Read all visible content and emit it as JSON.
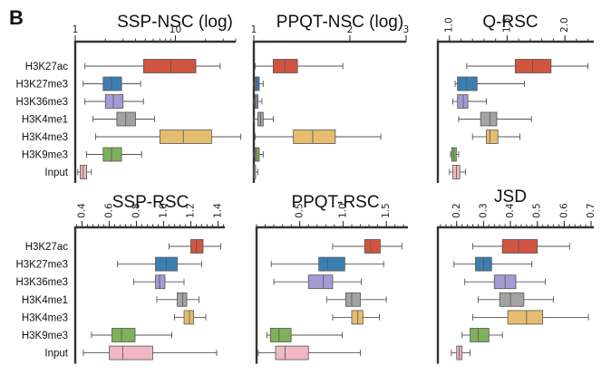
{
  "figure": {
    "panel_letter": "B"
  },
  "categories": [
    "H3K27ac",
    "H3K27me3",
    "H3K36me3",
    "H3K4me1",
    "H3K4me3",
    "H3K9me3",
    "Input"
  ],
  "colors": {
    "H3K27ac": "#d05541",
    "H3K27me3": "#3b7fb0",
    "H3K36me3": "#a59ad4",
    "H3K4me1": "#a3a3a3",
    "H3K4me3": "#e6bd6e",
    "H3K9me3": "#7fb05a",
    "Input": "#f0b8c2"
  },
  "chart_data": [
    {
      "type": "box",
      "title": "SSP-NSC (log)",
      "scale": "log",
      "xlim": [
        1,
        40
      ],
      "ticks": [
        1,
        10
      ],
      "tick_labels": [
        "1",
        "10"
      ],
      "categories": [
        "H3K27ac",
        "H3K27me3",
        "H3K36me3",
        "H3K4me1",
        "H3K4me3",
        "H3K9me3",
        "Input"
      ],
      "boxes": [
        {
          "min": 1.25,
          "q1": 4.8,
          "median": 9.0,
          "q3": 16.0,
          "max": 28.0
        },
        {
          "min": 1.2,
          "q1": 1.9,
          "median": 2.3,
          "q3": 2.9,
          "max": 4.5
        },
        {
          "min": 1.25,
          "q1": 2.0,
          "median": 2.4,
          "q3": 3.0,
          "max": 4.8
        },
        {
          "min": 1.5,
          "q1": 2.6,
          "median": 3.2,
          "q3": 4.0,
          "max": 6.2
        },
        {
          "min": 1.6,
          "q1": 7.0,
          "median": 12.0,
          "q3": 23.0,
          "max": 45.0
        },
        {
          "min": 1.3,
          "q1": 1.9,
          "median": 2.3,
          "q3": 2.9,
          "max": 4.6
        },
        {
          "min": 1.06,
          "q1": 1.12,
          "median": 1.2,
          "q3": 1.3,
          "max": 1.45
        }
      ]
    },
    {
      "type": "box",
      "title": "PPQT-NSC (log)",
      "scale": "log",
      "xlim": [
        1,
        3
      ],
      "ticks": [
        1,
        2,
        3
      ],
      "tick_labels": [
        "1",
        "2",
        "3"
      ],
      "categories": [
        "H3K27ac",
        "H3K27me3",
        "H3K36me3",
        "H3K4me1",
        "H3K4me3",
        "H3K9me3",
        "Input"
      ],
      "boxes": [
        {
          "min": 1.01,
          "q1": 1.15,
          "median": 1.25,
          "q3": 1.37,
          "max": 1.9
        },
        {
          "min": 1.0,
          "q1": 1.01,
          "median": 1.02,
          "q3": 1.04,
          "max": 1.07
        },
        {
          "min": 1.0,
          "q1": 1.01,
          "median": 1.02,
          "q3": 1.03,
          "max": 1.06
        },
        {
          "min": 1.0,
          "q1": 1.03,
          "median": 1.05,
          "q3": 1.07,
          "max": 1.15
        },
        {
          "min": 1.01,
          "q1": 1.33,
          "median": 1.53,
          "q3": 1.8,
          "max": 2.5
        },
        {
          "min": 1.0,
          "q1": 1.01,
          "median": 1.02,
          "q3": 1.04,
          "max": 1.07
        },
        {
          "min": 1.0,
          "q1": 1.0,
          "median": 1.005,
          "q3": 1.01,
          "max": 1.03
        }
      ]
    },
    {
      "type": "box",
      "title": "Q-RSC",
      "scale": "linear",
      "xlim": [
        0.9,
        2.25
      ],
      "ticks": [
        1.0,
        1.5,
        2.0
      ],
      "tick_labels": [
        "1.0",
        "1.5",
        "2.0"
      ],
      "categories": [
        "H3K27ac",
        "H3K27me3",
        "H3K36me3",
        "H3K4me1",
        "H3K4me3",
        "H3K9me3",
        "Input"
      ],
      "boxes": [
        {
          "min": 1.15,
          "q1": 1.57,
          "median": 1.72,
          "q3": 1.88,
          "max": 2.2
        },
        {
          "min": 1.05,
          "q1": 1.07,
          "median": 1.15,
          "q3": 1.24,
          "max": 1.65
        },
        {
          "min": 1.03,
          "q1": 1.07,
          "median": 1.12,
          "q3": 1.16,
          "max": 1.32
        },
        {
          "min": 1.08,
          "q1": 1.27,
          "median": 1.35,
          "q3": 1.41,
          "max": 1.71
        },
        {
          "min": 1.2,
          "q1": 1.32,
          "median": 1.35,
          "q3": 1.42,
          "max": 1.61
        },
        {
          "min": 1.01,
          "q1": 1.02,
          "median": 1.04,
          "q3": 1.06,
          "max": 1.08
        },
        {
          "min": 1.0,
          "q1": 1.03,
          "median": 1.06,
          "q3": 1.09,
          "max": 1.14
        }
      ]
    },
    {
      "type": "box",
      "title": "SSP-RSC",
      "scale": "linear",
      "xlim": [
        0.35,
        1.45
      ],
      "ticks": [
        0.4,
        0.6,
        0.8,
        1.0,
        1.2,
        1.4
      ],
      "tick_labels": [
        "0.4",
        "0.6",
        "0.8",
        "1.0",
        "1.2",
        "1.4"
      ],
      "categories": [
        "H3K27ac",
        "H3K27me3",
        "H3K36me3",
        "H3K4me1",
        "H3K4me3",
        "H3K9me3",
        "Input"
      ],
      "boxes": [
        {
          "min": 1.04,
          "q1": 1.2,
          "median": 1.24,
          "q3": 1.29,
          "max": 1.42
        },
        {
          "min": 0.66,
          "q1": 0.94,
          "median": 1.02,
          "q3": 1.1,
          "max": 1.28
        },
        {
          "min": 0.78,
          "q1": 0.94,
          "median": 0.97,
          "q3": 1.01,
          "max": 1.15
        },
        {
          "min": 0.95,
          "q1": 1.1,
          "median": 1.14,
          "q3": 1.17,
          "max": 1.26
        },
        {
          "min": 1.08,
          "q1": 1.15,
          "median": 1.19,
          "q3": 1.22,
          "max": 1.31
        },
        {
          "min": 0.47,
          "q1": 0.62,
          "median": 0.69,
          "q3": 0.79,
          "max": 1.06
        },
        {
          "min": 0.41,
          "q1": 0.6,
          "median": 0.7,
          "q3": 0.92,
          "max": 1.39
        }
      ]
    },
    {
      "type": "box",
      "title": "PPQT-RSC",
      "scale": "linear",
      "xlim": [
        0.0,
        1.75
      ],
      "ticks": [
        0.5,
        1.0,
        1.5
      ],
      "tick_labels": [
        "0.5",
        "1.0",
        "1.5"
      ],
      "categories": [
        "H3K27ac",
        "H3K27me3",
        "H3K36me3",
        "H3K4me1",
        "H3K4me3",
        "H3K9me3",
        "Input"
      ],
      "boxes": [
        {
          "min": 0.88,
          "q1": 1.25,
          "median": 1.32,
          "q3": 1.43,
          "max": 1.68
        },
        {
          "min": 0.17,
          "q1": 0.72,
          "median": 0.82,
          "q3": 1.02,
          "max": 1.47
        },
        {
          "min": 0.2,
          "q1": 0.6,
          "median": 0.77,
          "q3": 0.88,
          "max": 1.21
        },
        {
          "min": 0.81,
          "q1": 1.03,
          "median": 1.1,
          "q3": 1.2,
          "max": 1.5
        },
        {
          "min": 0.88,
          "q1": 1.1,
          "median": 1.17,
          "q3": 1.23,
          "max": 1.42
        },
        {
          "min": 0.12,
          "q1": 0.16,
          "median": 0.26,
          "q3": 0.4,
          "max": 0.99
        },
        {
          "min": 0.02,
          "q1": 0.22,
          "median": 0.33,
          "q3": 0.6,
          "max": 1.2
        }
      ]
    },
    {
      "type": "box",
      "title": "JSD",
      "scale": "linear",
      "xlim": [
        0.13,
        0.71
      ],
      "ticks": [
        0.2,
        0.3,
        0.4,
        0.5,
        0.6,
        0.7
      ],
      "tick_labels": [
        "0.2",
        "0.3",
        "0.4",
        "0.5",
        "0.6",
        "0.7"
      ],
      "categories": [
        "H3K27ac",
        "H3K27me3",
        "H3K36me3",
        "H3K4me1",
        "H3K4me3",
        "H3K9me3",
        "Input"
      ],
      "boxes": [
        {
          "min": 0.26,
          "q1": 0.37,
          "median": 0.43,
          "q3": 0.5,
          "max": 0.62
        },
        {
          "min": 0.19,
          "q1": 0.27,
          "median": 0.3,
          "q3": 0.33,
          "max": 0.48
        },
        {
          "min": 0.23,
          "q1": 0.34,
          "median": 0.38,
          "q3": 0.42,
          "max": 0.53
        },
        {
          "min": 0.28,
          "q1": 0.36,
          "median": 0.4,
          "q3": 0.45,
          "max": 0.56
        },
        {
          "min": 0.26,
          "q1": 0.39,
          "median": 0.46,
          "q3": 0.52,
          "max": 0.69
        },
        {
          "min": 0.22,
          "q1": 0.25,
          "median": 0.28,
          "q3": 0.32,
          "max": 0.37
        },
        {
          "min": 0.18,
          "q1": 0.2,
          "median": 0.21,
          "q3": 0.22,
          "max": 0.25
        }
      ]
    }
  ]
}
